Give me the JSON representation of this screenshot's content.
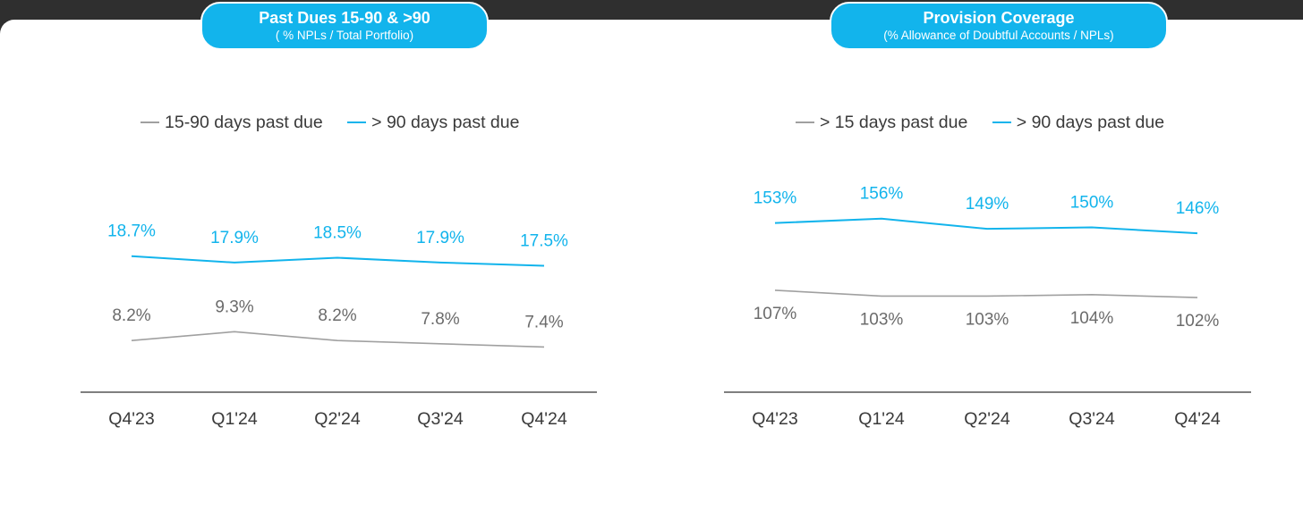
{
  "colors": {
    "accent": "#12b4ec",
    "gray_line": "#a0a0a0",
    "gray_text": "#6b6b6b",
    "axis": "#555555"
  },
  "chart_data": [
    {
      "type": "line",
      "title": "Past Dues 15-90 & >90",
      "subtitle": "( % NPLs / Total Portfolio)",
      "categories": [
        "Q4'23",
        "Q1'24",
        "Q2'24",
        "Q3'24",
        "Q4'24"
      ],
      "series": [
        {
          "name": "15-90 days past due",
          "values": [
            8.2,
            9.3,
            8.2,
            7.8,
            7.4
          ],
          "labels": [
            "8.2%",
            "9.3%",
            "8.2%",
            "7.8%",
            "7.4%"
          ],
          "color": "#a0a0a0",
          "label_position": "above"
        },
        {
          "name": "> 90 days past due",
          "values": [
            18.7,
            17.9,
            18.5,
            17.9,
            17.5
          ],
          "labels": [
            "18.7%",
            "17.9%",
            "18.5%",
            "17.9%",
            "17.5%"
          ],
          "color": "#12b4ec",
          "label_position": "above"
        }
      ],
      "ylim": [
        -5,
        35
      ],
      "legend": "top",
      "grid": false
    },
    {
      "type": "line",
      "title": "Provision Coverage",
      "subtitle": "(% Allowance of Doubtful Accounts / NPLs)",
      "categories": [
        "Q4'23",
        "Q1'24",
        "Q2'24",
        "Q3'24",
        "Q4'24"
      ],
      "series": [
        {
          "name": "> 15 days past due",
          "values": [
            107,
            103,
            103,
            104,
            102
          ],
          "labels": [
            "107%",
            "103%",
            "103%",
            "104%",
            "102%"
          ],
          "color": "#a0a0a0",
          "label_position": "below"
        },
        {
          "name": "> 90 days past due",
          "values": [
            153,
            156,
            149,
            150,
            146
          ],
          "labels": [
            "153%",
            "156%",
            "149%",
            "150%",
            "146%"
          ],
          "color": "#12b4ec",
          "label_position": "above"
        }
      ],
      "ylim": [
        0,
        220
      ],
      "legend": "top",
      "grid": false
    }
  ]
}
